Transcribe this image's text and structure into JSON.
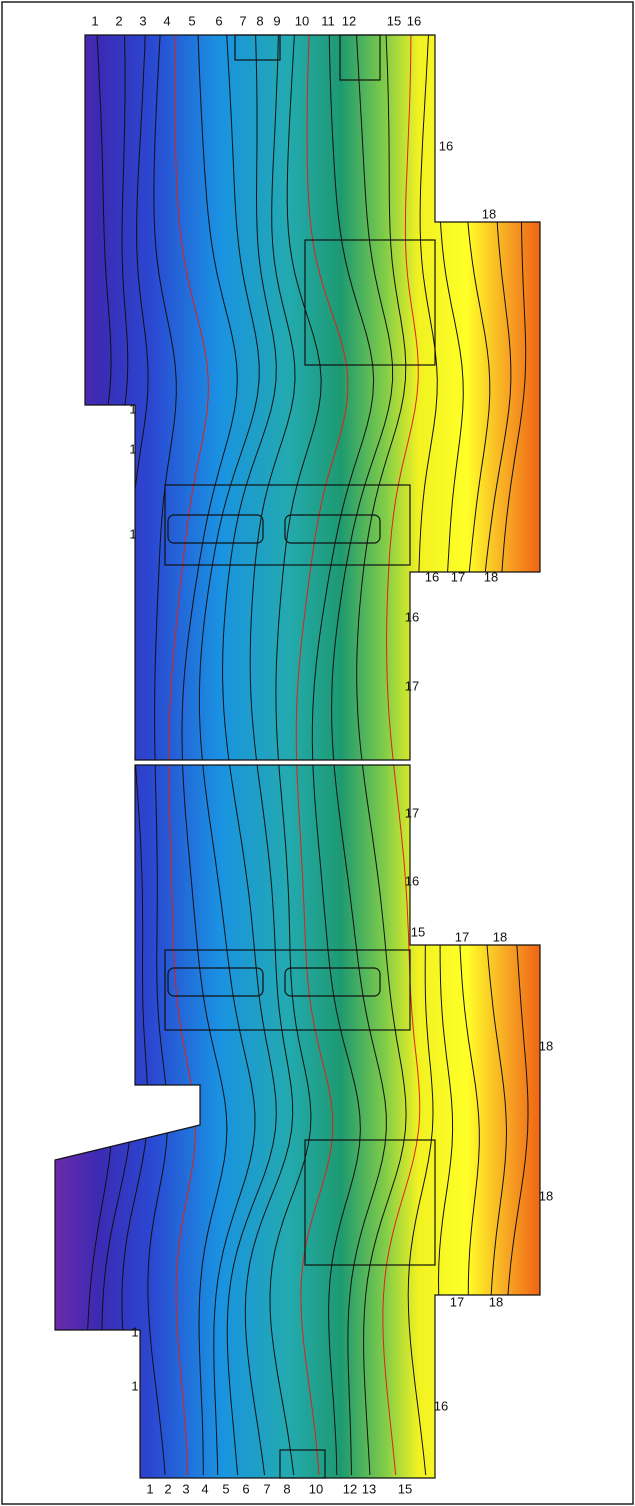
{
  "top_labels": [
    "1",
    "2",
    "3",
    "4",
    "5",
    "6",
    "7",
    "8",
    "9",
    "10",
    "11",
    "12",
    "15",
    "16"
  ],
  "side_labels": [
    "16",
    "18",
    "1",
    "1",
    "1",
    "16",
    "17",
    "18",
    "16",
    "17",
    "17",
    "16",
    "15",
    "17",
    "18",
    "18",
    "18",
    "17",
    "18",
    "1",
    "1",
    "16"
  ],
  "bottom_labels": [
    "1",
    "2",
    "3",
    "4",
    "5",
    "6",
    "7",
    "8",
    "10",
    "12",
    "13",
    "15"
  ]
}
